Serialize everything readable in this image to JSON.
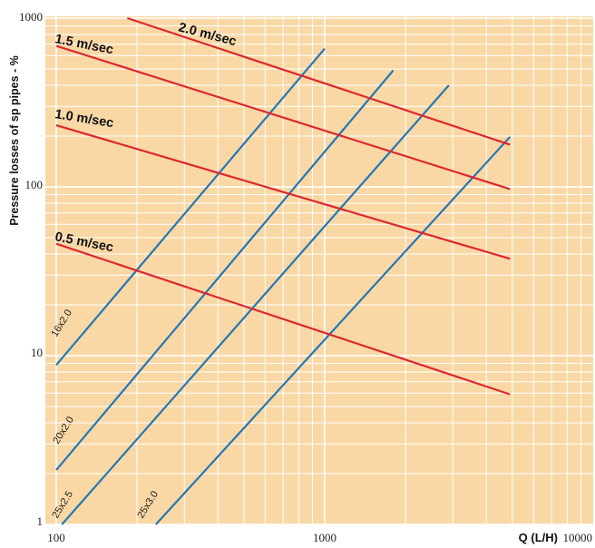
{
  "chart_data": {
    "type": "line",
    "x_scale": "log",
    "y_scale": "log",
    "xlim": [
      100,
      10000
    ],
    "ylim": [
      1,
      1000
    ],
    "ylabel": "Pressure losses of sp pipes - %",
    "xlabel_bold": "Q (L/H)",
    "x_ticks": [
      "100",
      "1000",
      "10000"
    ],
    "y_ticks": [
      "1",
      "10",
      "100",
      "1000"
    ],
    "grid": true,
    "colors": {
      "background": "#f9d8a6",
      "grid": "#ffffff",
      "pipe_line": "#2478b4",
      "velocity_line": "#dc2830"
    },
    "pipe_series": [
      {
        "name": "16x2.0",
        "x": [
          100,
          1000
        ],
        "y": [
          8.8,
          660
        ]
      },
      {
        "name": "20x2.0",
        "x": [
          100,
          1800
        ],
        "y": [
          2.1,
          490
        ]
      },
      {
        "name": "25x2.5",
        "x": [
          105,
          2900
        ],
        "y": [
          1.0,
          400
        ]
      },
      {
        "name": "25x3.0",
        "x": [
          235,
          4900
        ],
        "y": [
          1.0,
          198
        ]
      }
    ],
    "velocity_series": [
      {
        "name": "2.0 m/sec",
        "x": [
          184,
          4900
        ],
        "y": [
          1000,
          178
        ]
      },
      {
        "name": "1.5 m/sec",
        "x": [
          100,
          4900
        ],
        "y": [
          685,
          97
        ]
      },
      {
        "name": "1.0 m/sec",
        "x": [
          100,
          4900
        ],
        "y": [
          232,
          37.5
        ]
      },
      {
        "name": "0.5 m/sec",
        "x": [
          100,
          4900
        ],
        "y": [
          46,
          5.9
        ]
      }
    ]
  }
}
